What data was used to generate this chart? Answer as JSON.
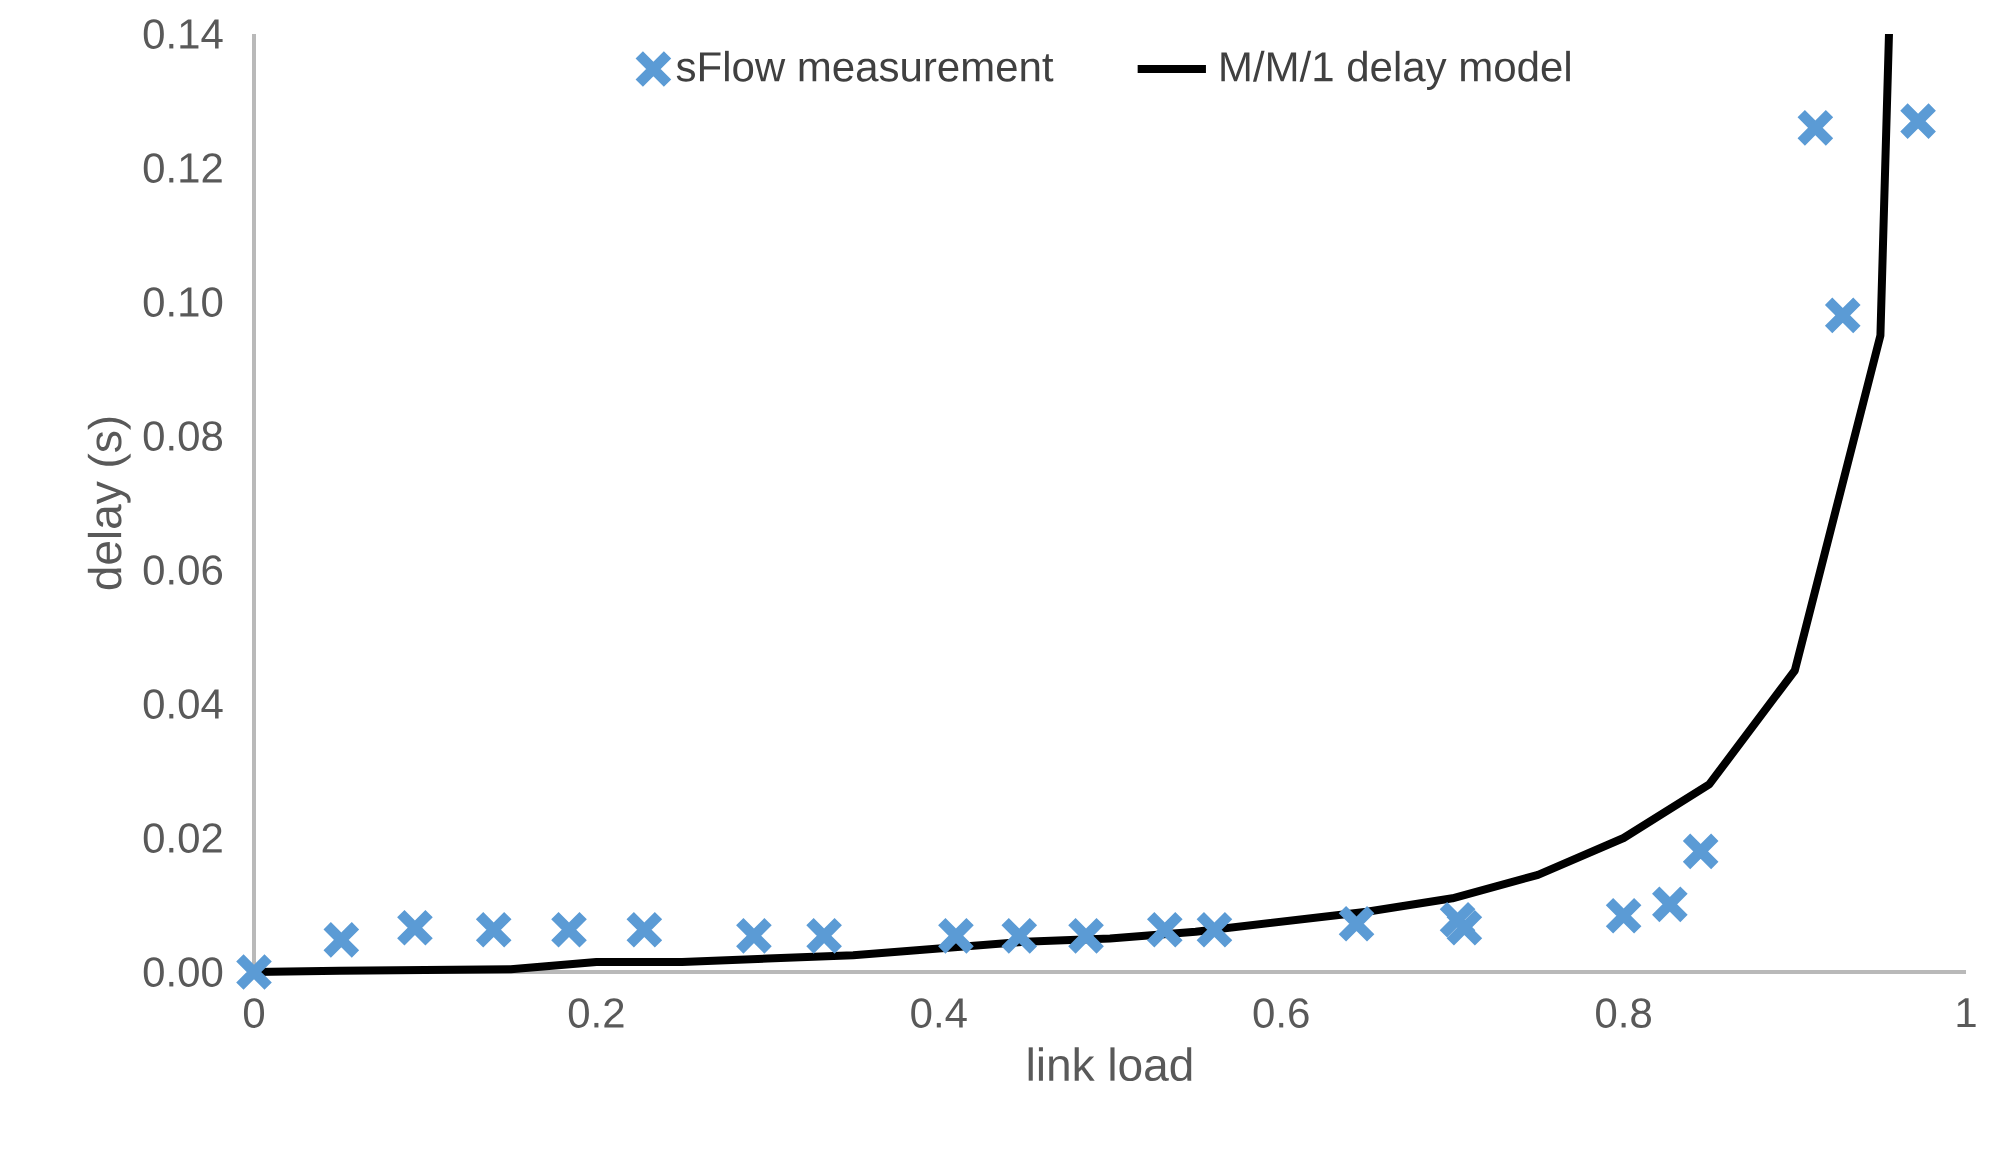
{
  "chart_data": {
    "type": "scatter",
    "xlabel": "link load",
    "ylabel": "delay (s)",
    "xlim": [
      0,
      1
    ],
    "ylim": [
      0,
      0.14
    ],
    "xticks": [
      0,
      0.2,
      0.4,
      0.6,
      0.8,
      1
    ],
    "yticks": [
      {
        "value": 0,
        "label": "0.00"
      },
      {
        "value": 0.02,
        "label": "0.02"
      },
      {
        "value": 0.04,
        "label": "0.04"
      },
      {
        "value": 0.06,
        "label": "0.06"
      },
      {
        "value": 0.08,
        "label": "0.08"
      },
      {
        "value": 0.1,
        "label": "0.10"
      },
      {
        "value": 0.12,
        "label": "0.12"
      },
      {
        "value": 0.14,
        "label": "0.14"
      }
    ],
    "legend": "top",
    "grid": false,
    "series": [
      {
        "name": "sFlow measurement",
        "marker": "cross",
        "color": "#5b9bd5",
        "x": [
          0,
          0.051,
          0.094,
          0.14,
          0.184,
          0.228,
          0.292,
          0.333,
          0.41,
          0.447,
          0.486,
          0.532,
          0.561,
          0.644,
          0.703,
          0.707,
          0.8,
          0.827,
          0.845,
          0.912,
          0.928,
          0.972
        ],
        "values": [
          0,
          0.0048,
          0.0066,
          0.0063,
          0.0063,
          0.0063,
          0.0054,
          0.0054,
          0.0054,
          0.0054,
          0.0054,
          0.0063,
          0.0063,
          0.0072,
          0.0078,
          0.0066,
          0.0084,
          0.0101,
          0.018,
          0.126,
          0.098,
          0.127
        ]
      },
      {
        "name": "M/M/1 delay model",
        "type": "line",
        "marker": "none",
        "color": "#000000",
        "x": [
          0,
          0.05,
          0.1,
          0.15,
          0.2,
          0.25,
          0.3,
          0.35,
          0.4,
          0.45,
          0.5,
          0.55,
          0.6,
          0.65,
          0.7,
          0.75,
          0.8,
          0.85,
          0.9,
          0.95,
          0.955
        ],
        "values": [
          0,
          0.0002,
          0.0003,
          0.0004,
          0.0015,
          0.0015,
          0.002,
          0.0025,
          0.0035,
          0.0045,
          0.005,
          0.006,
          0.0075,
          0.009,
          0.011,
          0.0145,
          0.02,
          0.028,
          0.045,
          0.095,
          0.14
        ]
      }
    ]
  }
}
